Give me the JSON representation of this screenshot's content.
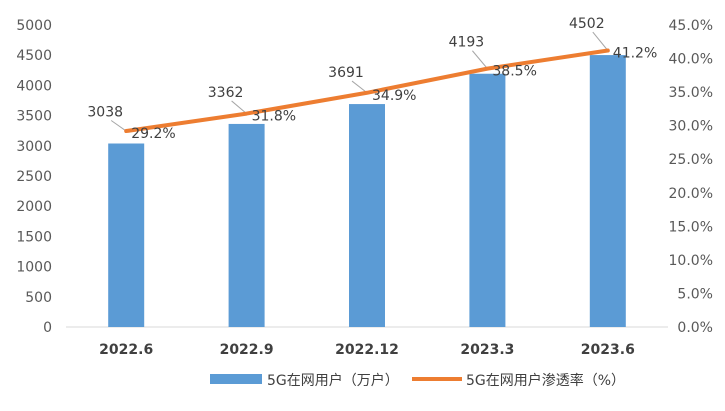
{
  "chart_data": {
    "type": "bar+line",
    "categories": [
      "2022.6",
      "2022.9",
      "2022.12",
      "2023.3",
      "2023.6"
    ],
    "series": [
      {
        "name": "5G在网用户（万户）",
        "type": "bar",
        "axis": "left",
        "color": "#5b9bd5",
        "values": [
          3038,
          3362,
          3691,
          4193,
          4502
        ],
        "labels": [
          "3038",
          "3362",
          "3691",
          "4193",
          "4502"
        ]
      },
      {
        "name": "5G在网用户渗透率（%）",
        "type": "line",
        "axis": "right",
        "color": "#ed7d31",
        "values": [
          29.2,
          31.8,
          34.9,
          38.5,
          41.2
        ],
        "labels": [
          "29.2%",
          "31.8%",
          "34.9%",
          "38.5%",
          "41.2%"
        ]
      }
    ],
    "y_left": {
      "ylim": [
        0,
        5000
      ],
      "ticks": [
        "0",
        "500",
        "1000",
        "1500",
        "2000",
        "2500",
        "3000",
        "3500",
        "4000",
        "4500",
        "5000"
      ]
    },
    "y_right": {
      "ylim": [
        0,
        45
      ],
      "ticks": [
        "0.0%",
        "5.0%",
        "10.0%",
        "15.0%",
        "20.0%",
        "25.0%",
        "30.0%",
        "35.0%",
        "40.0%",
        "45.0%"
      ]
    },
    "grid": false,
    "legend": "bottom"
  }
}
